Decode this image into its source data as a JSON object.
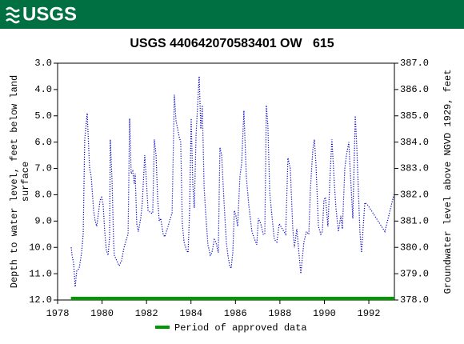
{
  "header": {
    "logo": "USGS"
  },
  "chart_data": {
    "type": "line",
    "title": "USGS 440642070583401 OW   615",
    "ylabel": [
      "Depth to water level, feet below land",
      "surface"
    ],
    "y2label": "Groundwater level above NGVD 1929, feet",
    "x": [
      1978.61,
      1978.65,
      1978.72,
      1978.79,
      1978.86,
      1978.97,
      1979.08,
      1979.15,
      1979.22,
      1979.33,
      1979.44,
      1979.51,
      1979.62,
      1979.69,
      1979.76,
      1979.84,
      1979.91,
      1979.98,
      1980.05,
      1980.12,
      1980.19,
      1980.27,
      1980.34,
      1980.37,
      1980.45,
      1980.52,
      1980.55,
      1980.66,
      1980.77,
      1980.88,
      1980.99,
      1981.09,
      1981.17,
      1981.24,
      1981.31,
      1981.38,
      1981.45,
      1981.49,
      1981.56,
      1981.63,
      1981.74,
      1981.81,
      1981.92,
      1981.99,
      1982.07,
      1982.21,
      1982.28,
      1982.35,
      1982.43,
      1982.5,
      1982.57,
      1982.64,
      1982.75,
      1982.82,
      1982.97,
      1983.07,
      1983.15,
      1983.25,
      1983.33,
      1983.4,
      1983.47,
      1983.54,
      1983.61,
      1983.69,
      1983.79,
      1983.87,
      1983.94,
      1984.01,
      1984.08,
      1984.15,
      1984.23,
      1984.37,
      1984.44,
      1984.51,
      1984.59,
      1984.66,
      1984.76,
      1984.87,
      1984.94,
      1985.05,
      1985.12,
      1985.23,
      1985.3,
      1985.38,
      1985.48,
      1985.59,
      1985.66,
      1985.74,
      1985.81,
      1985.84,
      1985.88,
      1985.95,
      1986.02,
      1986.1,
      1986.2,
      1986.28,
      1986.38,
      1986.49,
      1986.6,
      1986.74,
      1986.82,
      1986.96,
      1987.03,
      1987.14,
      1987.25,
      1987.32,
      1987.39,
      1987.46,
      1987.54,
      1987.64,
      1987.75,
      1987.86,
      1987.97,
      1988.11,
      1988.26,
      1988.36,
      1988.47,
      1988.58,
      1988.65,
      1988.76,
      1988.94,
      1989.08,
      1989.19,
      1989.3,
      1989.37,
      1989.48,
      1989.55,
      1989.62,
      1989.73,
      1989.84,
      1989.91,
      1989.98,
      1990.05,
      1990.16,
      1990.27,
      1990.34,
      1990.45,
      1990.52,
      1990.63,
      1990.74,
      1990.81,
      1990.92,
      1990.99,
      1991.1,
      1991.17,
      1991.28,
      1991.39,
      1991.46,
      1991.6,
      1991.67,
      1991.82,
      1991.96,
      1992.72,
      1993.13
    ],
    "series": [
      {
        "color": "#0000cc",
        "values": [
          10.0,
          10.3,
          10.6,
          11.5,
          10.9,
          10.8,
          10.2,
          9.5,
          5.9,
          4.9,
          7.0,
          7.3,
          8.6,
          9.0,
          9.2,
          8.7,
          8.2,
          8.1,
          8.4,
          9.4,
          10.1,
          10.3,
          9.6,
          5.9,
          7.5,
          9.8,
          10.3,
          10.5,
          10.7,
          10.5,
          10.0,
          9.7,
          9.5,
          5.1,
          7.2,
          7.1,
          7.6,
          7.2,
          9.1,
          9.4,
          8.9,
          8.3,
          6.5,
          7.4,
          8.6,
          8.7,
          8.7,
          5.9,
          6.5,
          8.1,
          9.0,
          8.9,
          9.5,
          9.6,
          9.2,
          8.9,
          8.7,
          4.2,
          5.2,
          5.5,
          5.8,
          6.0,
          9.1,
          9.8,
          10.1,
          10.2,
          8.5,
          5.1,
          7.6,
          8.5,
          5.7,
          3.5,
          5.5,
          4.6,
          7.7,
          8.7,
          9.9,
          10.3,
          10.2,
          9.7,
          9.8,
          10.2,
          6.2,
          6.5,
          8.2,
          9.8,
          10.3,
          10.7,
          10.8,
          10.5,
          10.2,
          8.6,
          8.8,
          9.2,
          7.3,
          6.8,
          4.8,
          7.3,
          8.4,
          9.4,
          9.6,
          9.9,
          8.9,
          9.1,
          9.5,
          9.5,
          4.6,
          5.4,
          7.9,
          8.8,
          9.7,
          9.8,
          9.1,
          9.3,
          9.5,
          6.6,
          7.0,
          9.3,
          10.0,
          9.3,
          11.0,
          9.8,
          9.4,
          9.5,
          7.8,
          6.3,
          5.9,
          6.8,
          9.2,
          9.5,
          9.4,
          8.2,
          8.1,
          9.2,
          7.0,
          5.9,
          7.6,
          8.5,
          9.4,
          8.8,
          9.3,
          7.0,
          6.5,
          6.0,
          7.2,
          8.9,
          5.0,
          6.2,
          9.4,
          10.2,
          8.3,
          8.4,
          9.4,
          8.0
        ]
      }
    ],
    "xlim": [
      1978,
      1993.15
    ],
    "xticks": [
      1978,
      1980,
      1982,
      1984,
      1986,
      1988,
      1990,
      1992
    ],
    "ylim": [
      3,
      12
    ],
    "y_inverted": true,
    "yticks": [
      {
        "value": 3,
        "label": "3.0"
      },
      {
        "value": 4,
        "label": "4.0"
      },
      {
        "value": 5,
        "label": "5.0"
      },
      {
        "value": 6,
        "label": "6.0"
      },
      {
        "value": 7,
        "label": "7.0"
      },
      {
        "value": 8,
        "label": "8.0"
      },
      {
        "value": 9,
        "label": "9.0"
      },
      {
        "value": 10,
        "label": "10.0"
      },
      {
        "value": 11,
        "label": "11.0"
      },
      {
        "value": 12,
        "label": "12.0"
      }
    ],
    "y2lim": [
      387,
      378
    ],
    "y2ticks": [
      {
        "value": 387,
        "label": "387.0"
      },
      {
        "value": 386,
        "label": "386.0"
      },
      {
        "value": 385,
        "label": "385.0"
      },
      {
        "value": 384,
        "label": "384.0"
      },
      {
        "value": 383,
        "label": "383.0"
      },
      {
        "value": 382,
        "label": "382.0"
      },
      {
        "value": 381,
        "label": "381.0"
      },
      {
        "value": 380,
        "label": "380.0"
      },
      {
        "value": 379,
        "label": "379.0"
      },
      {
        "value": 378,
        "label": "378.0"
      }
    ],
    "approved": {
      "name": "Period of approved data",
      "color": "#009900",
      "x": [
        1978.6,
        1993.15
      ]
    }
  }
}
